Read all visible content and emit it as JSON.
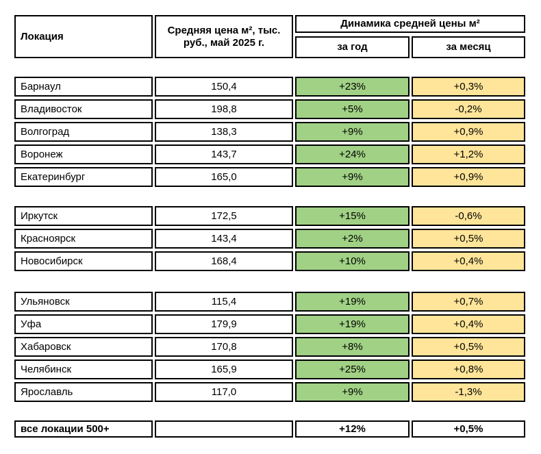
{
  "colors": {
    "year_change_green": "#a0d185",
    "month_change_yellow": "#ffe599",
    "border_black": "#000000",
    "background_white": "#ffffff"
  },
  "table": {
    "headers": {
      "location": "Локация",
      "price": "Средняя цена м², тыс. руб., май 2025 г.",
      "dynamics": "Динамика средней цены м²",
      "year": "за год",
      "month": "за месяц"
    }
  },
  "chart_data": {
    "type": "table",
    "title": "Динамика средней цены м²",
    "columns": [
      "Локация",
      "Средняя цена м², тыс. руб., май 2025 г.",
      "за год",
      "за месяц"
    ],
    "groups": [
      [
        {
          "location": "Барнаул",
          "price": "150,4",
          "year": "+23%",
          "month": "+0,3%"
        },
        {
          "location": "Владивосток",
          "price": "198,8",
          "year": "+5%",
          "month": "-0,2%"
        },
        {
          "location": "Волгоград",
          "price": "138,3",
          "year": "+9%",
          "month": "+0,9%"
        },
        {
          "location": "Воронеж",
          "price": "143,7",
          "year": "+24%",
          "month": "+1,2%"
        },
        {
          "location": "Екатеринбург",
          "price": "165,0",
          "year": "+9%",
          "month": "+0,9%"
        }
      ],
      [
        {
          "location": "Иркутск",
          "price": "172,5",
          "year": "+15%",
          "month": "-0,6%"
        },
        {
          "location": "Красноярск",
          "price": "143,4",
          "year": "+2%",
          "month": "+0,5%"
        },
        {
          "location": "Новосибирск",
          "price": "168,4",
          "year": "+10%",
          "month": "+0,4%"
        }
      ],
      [
        {
          "location": "Ульяновск",
          "price": "115,4",
          "year": "+19%",
          "month": "+0,7%"
        },
        {
          "location": "Уфа",
          "price": "179,9",
          "year": "+19%",
          "month": "+0,4%"
        },
        {
          "location": "Хабаровск",
          "price": "170,8",
          "year": "+8%",
          "month": "+0,5%"
        },
        {
          "location": "Челябинск",
          "price": "165,9",
          "year": "+25%",
          "month": "+0,8%"
        },
        {
          "location": "Ярославль",
          "price": "117,0",
          "year": "+9%",
          "month": "-1,3%"
        }
      ]
    ],
    "summary": {
      "location": "все локации 500+",
      "price": "",
      "year": "+12%",
      "month": "+0,5%"
    }
  }
}
